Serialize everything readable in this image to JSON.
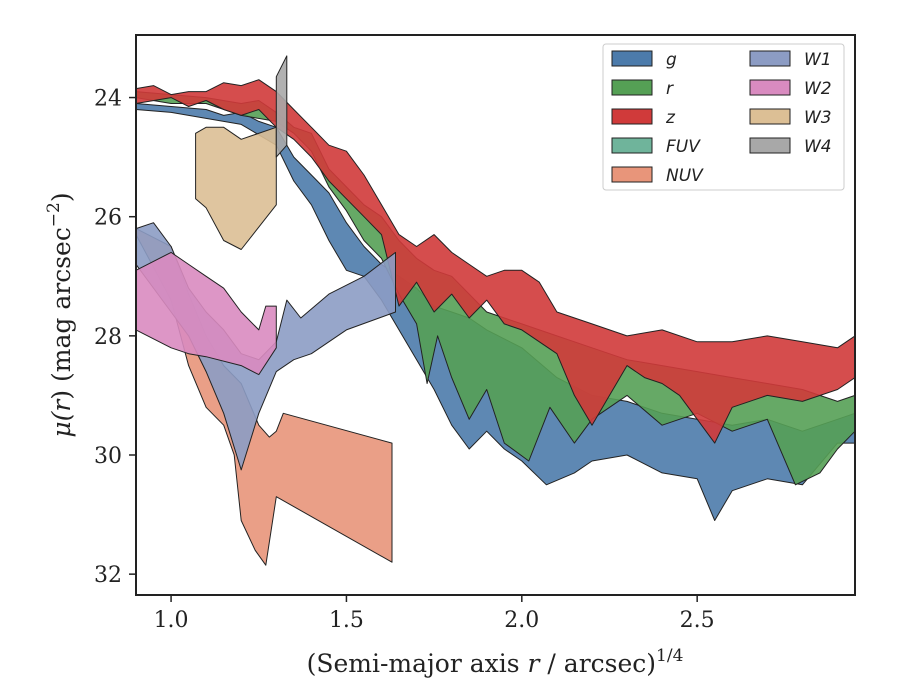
{
  "chart_data": {
    "type": "area",
    "xlabel_main": "(Semi-major axis ",
    "xlabel_var": "r",
    "xlabel_rest": " / arcsec)",
    "xlabel_sup": "1/4",
    "ylabel_main": "μ(",
    "ylabel_var": "r",
    "ylabel_rest": ") (mag arcsec",
    "ylabel_sup": "−2",
    "ylabel_close": ")",
    "xlim": [
      0.9,
      2.95
    ],
    "ylim": [
      32.35,
      22.95
    ],
    "y_inverted": true,
    "xticks": [
      1.0,
      1.5,
      2.0,
      2.5
    ],
    "xtick_labels": [
      "1.0",
      "1.5",
      "2.0",
      "2.5"
    ],
    "yticks": [
      24,
      26,
      28,
      30,
      32
    ],
    "ytick_labels": [
      "24",
      "26",
      "28",
      "30",
      "32"
    ],
    "grid": false,
    "legend": {
      "placement": "top-right",
      "columns": 2
    },
    "series": [
      {
        "name": "g",
        "color": "#4c7bab",
        "upper": [
          [
            0.9,
            24.1
          ],
          [
            1.0,
            24.15
          ],
          [
            1.1,
            24.2
          ],
          [
            1.15,
            24.3
          ],
          [
            1.2,
            24.25
          ],
          [
            1.25,
            24.4
          ],
          [
            1.3,
            24.5
          ],
          [
            1.35,
            25.0
          ],
          [
            1.4,
            25.3
          ],
          [
            1.45,
            25.6
          ],
          [
            1.5,
            26.1
          ],
          [
            1.55,
            26.5
          ],
          [
            1.6,
            26.8
          ],
          [
            1.65,
            27.0
          ],
          [
            1.7,
            27.2
          ],
          [
            1.75,
            27.5
          ],
          [
            1.8,
            27.6
          ],
          [
            1.85,
            27.7
          ],
          [
            1.9,
            27.9
          ],
          [
            2.0,
            28.2
          ],
          [
            2.1,
            28.7
          ],
          [
            2.2,
            29.0
          ],
          [
            2.3,
            29.1
          ],
          [
            2.4,
            29.3
          ],
          [
            2.5,
            29.4
          ],
          [
            2.6,
            29.5
          ],
          [
            2.7,
            29.4
          ],
          [
            2.8,
            29.6
          ],
          [
            2.9,
            29.4
          ],
          [
            2.95,
            29.3
          ]
        ],
        "lower": [
          [
            0.9,
            24.2
          ],
          [
            1.0,
            24.25
          ],
          [
            1.1,
            24.35
          ],
          [
            1.2,
            24.45
          ],
          [
            1.3,
            24.8
          ],
          [
            1.35,
            25.4
          ],
          [
            1.4,
            25.8
          ],
          [
            1.45,
            26.4
          ],
          [
            1.5,
            26.9
          ],
          [
            1.55,
            27.0
          ],
          [
            1.6,
            27.4
          ],
          [
            1.65,
            27.9
          ],
          [
            1.7,
            28.4
          ],
          [
            1.75,
            28.9
          ],
          [
            1.8,
            29.5
          ],
          [
            1.85,
            29.9
          ],
          [
            1.9,
            29.6
          ],
          [
            1.95,
            29.9
          ],
          [
            2.0,
            30.1
          ],
          [
            2.07,
            30.5
          ],
          [
            2.15,
            30.3
          ],
          [
            2.2,
            30.1
          ],
          [
            2.3,
            30.0
          ],
          [
            2.4,
            30.3
          ],
          [
            2.5,
            30.4
          ],
          [
            2.55,
            31.1
          ],
          [
            2.6,
            30.6
          ],
          [
            2.7,
            30.4
          ],
          [
            2.8,
            30.5
          ],
          [
            2.9,
            29.8
          ],
          [
            2.95,
            29.8
          ]
        ]
      },
      {
        "name": "r",
        "color": "#55a055",
        "upper": [
          [
            0.9,
            23.9
          ],
          [
            1.0,
            23.95
          ],
          [
            1.1,
            24.0
          ],
          [
            1.2,
            24.1
          ],
          [
            1.25,
            24.05
          ],
          [
            1.3,
            24.25
          ],
          [
            1.35,
            24.5
          ],
          [
            1.4,
            24.6
          ],
          [
            1.45,
            25.2
          ],
          [
            1.5,
            25.5
          ],
          [
            1.55,
            25.8
          ],
          [
            1.6,
            26.0
          ],
          [
            1.65,
            26.4
          ],
          [
            1.7,
            26.7
          ],
          [
            1.75,
            26.9
          ],
          [
            1.8,
            27.0
          ],
          [
            1.85,
            27.3
          ],
          [
            1.9,
            27.6
          ],
          [
            2.0,
            27.8
          ],
          [
            2.1,
            28.0
          ],
          [
            2.2,
            28.2
          ],
          [
            2.3,
            28.4
          ],
          [
            2.4,
            28.5
          ],
          [
            2.5,
            28.6
          ],
          [
            2.6,
            28.7
          ],
          [
            2.7,
            28.8
          ],
          [
            2.8,
            28.9
          ],
          [
            2.9,
            29.1
          ],
          [
            2.95,
            29.0
          ]
        ],
        "lower": [
          [
            0.9,
            24.0
          ],
          [
            1.0,
            24.1
          ],
          [
            1.1,
            24.1
          ],
          [
            1.2,
            24.3
          ],
          [
            1.3,
            24.4
          ],
          [
            1.35,
            24.6
          ],
          [
            1.4,
            24.9
          ],
          [
            1.45,
            25.5
          ],
          [
            1.5,
            25.9
          ],
          [
            1.55,
            26.4
          ],
          [
            1.6,
            26.7
          ],
          [
            1.65,
            27.3
          ],
          [
            1.7,
            27.8
          ],
          [
            1.73,
            28.8
          ],
          [
            1.76,
            28.0
          ],
          [
            1.8,
            28.7
          ],
          [
            1.85,
            29.4
          ],
          [
            1.9,
            28.9
          ],
          [
            1.95,
            29.8
          ],
          [
            2.02,
            30.1
          ],
          [
            2.08,
            29.2
          ],
          [
            2.15,
            29.8
          ],
          [
            2.2,
            29.4
          ],
          [
            2.3,
            29.0
          ],
          [
            2.4,
            29.5
          ],
          [
            2.5,
            29.3
          ],
          [
            2.6,
            29.6
          ],
          [
            2.7,
            29.4
          ],
          [
            2.78,
            30.5
          ],
          [
            2.85,
            30.3
          ],
          [
            2.9,
            29.9
          ],
          [
            2.95,
            29.6
          ]
        ]
      },
      {
        "name": "z",
        "color": "#d03a3a",
        "upper": [
          [
            0.9,
            23.85
          ],
          [
            0.95,
            23.8
          ],
          [
            1.0,
            23.95
          ],
          [
            1.05,
            23.9
          ],
          [
            1.1,
            23.9
          ],
          [
            1.15,
            23.75
          ],
          [
            1.2,
            23.8
          ],
          [
            1.25,
            23.7
          ],
          [
            1.3,
            23.9
          ],
          [
            1.35,
            24.2
          ],
          [
            1.4,
            24.5
          ],
          [
            1.45,
            24.8
          ],
          [
            1.5,
            24.9
          ],
          [
            1.55,
            25.3
          ],
          [
            1.6,
            25.8
          ],
          [
            1.65,
            26.3
          ],
          [
            1.7,
            26.5
          ],
          [
            1.75,
            26.3
          ],
          [
            1.8,
            26.6
          ],
          [
            1.85,
            26.8
          ],
          [
            1.9,
            27.0
          ],
          [
            1.95,
            26.9
          ],
          [
            2.0,
            26.9
          ],
          [
            2.05,
            27.1
          ],
          [
            2.1,
            27.6
          ],
          [
            2.2,
            27.8
          ],
          [
            2.3,
            28.0
          ],
          [
            2.4,
            27.9
          ],
          [
            2.5,
            28.1
          ],
          [
            2.6,
            28.1
          ],
          [
            2.7,
            28.0
          ],
          [
            2.8,
            28.1
          ],
          [
            2.9,
            28.2
          ],
          [
            2.95,
            28.0
          ]
        ],
        "lower": [
          [
            0.9,
            24.1
          ],
          [
            1.0,
            24.0
          ],
          [
            1.05,
            24.15
          ],
          [
            1.1,
            24.05
          ],
          [
            1.15,
            24.2
          ],
          [
            1.2,
            24.3
          ],
          [
            1.25,
            24.2
          ],
          [
            1.3,
            24.5
          ],
          [
            1.35,
            24.7
          ],
          [
            1.4,
            25.0
          ],
          [
            1.45,
            25.4
          ],
          [
            1.5,
            25.7
          ],
          [
            1.55,
            26.0
          ],
          [
            1.6,
            26.3
          ],
          [
            1.65,
            27.5
          ],
          [
            1.7,
            27.1
          ],
          [
            1.75,
            27.6
          ],
          [
            1.8,
            27.3
          ],
          [
            1.85,
            27.7
          ],
          [
            1.9,
            27.4
          ],
          [
            1.95,
            27.8
          ],
          [
            2.0,
            27.9
          ],
          [
            2.1,
            28.3
          ],
          [
            2.15,
            29.0
          ],
          [
            2.2,
            29.5
          ],
          [
            2.25,
            29.0
          ],
          [
            2.3,
            28.5
          ],
          [
            2.35,
            28.7
          ],
          [
            2.4,
            28.8
          ],
          [
            2.45,
            29.0
          ],
          [
            2.5,
            29.4
          ],
          [
            2.55,
            29.8
          ],
          [
            2.6,
            29.2
          ],
          [
            2.7,
            29.0
          ],
          [
            2.8,
            29.1
          ],
          [
            2.9,
            28.9
          ],
          [
            2.95,
            28.7
          ]
        ]
      },
      {
        "name": "FUV",
        "color": "#6fb49b",
        "upper": [],
        "lower": []
      },
      {
        "name": "NUV",
        "color": "#e8957a",
        "upper": [
          [
            0.9,
            26.2
          ],
          [
            1.0,
            26.5
          ],
          [
            1.05,
            27.3
          ],
          [
            1.1,
            28.0
          ],
          [
            1.15,
            28.5
          ],
          [
            1.2,
            28.8
          ],
          [
            1.25,
            29.5
          ],
          [
            1.28,
            29.7
          ],
          [
            1.3,
            29.6
          ],
          [
            1.32,
            29.3
          ],
          [
            1.63,
            29.8
          ]
        ],
        "lower": [
          [
            0.9,
            26.3
          ],
          [
            1.0,
            27.4
          ],
          [
            1.05,
            28.5
          ],
          [
            1.1,
            29.2
          ],
          [
            1.15,
            29.5
          ],
          [
            1.18,
            30.0
          ],
          [
            1.2,
            31.1
          ],
          [
            1.24,
            31.6
          ],
          [
            1.27,
            31.85
          ],
          [
            1.3,
            30.7
          ],
          [
            1.63,
            31.8
          ]
        ]
      },
      {
        "name": "W1",
        "color": "#8c9cc4",
        "upper": [
          [
            0.9,
            26.2
          ],
          [
            0.95,
            26.1
          ],
          [
            1.0,
            26.5
          ],
          [
            1.05,
            27.2
          ],
          [
            1.1,
            27.6
          ],
          [
            1.15,
            27.9
          ],
          [
            1.2,
            28.3
          ],
          [
            1.25,
            28.4
          ],
          [
            1.3,
            28.1
          ],
          [
            1.33,
            27.4
          ],
          [
            1.37,
            27.7
          ],
          [
            1.45,
            27.3
          ],
          [
            1.55,
            27.0
          ],
          [
            1.64,
            26.6
          ]
        ],
        "lower": [
          [
            0.9,
            26.8
          ],
          [
            1.0,
            27.6
          ],
          [
            1.05,
            28.0
          ],
          [
            1.1,
            28.6
          ],
          [
            1.15,
            29.3
          ],
          [
            1.2,
            30.25
          ],
          [
            1.25,
            29.3
          ],
          [
            1.3,
            28.6
          ],
          [
            1.35,
            28.4
          ],
          [
            1.4,
            28.3
          ],
          [
            1.5,
            27.9
          ],
          [
            1.64,
            27.6
          ]
        ]
      },
      {
        "name": "W2",
        "color": "#d98bc0",
        "upper": [
          [
            0.9,
            26.9
          ],
          [
            1.0,
            26.6
          ],
          [
            1.05,
            26.8
          ],
          [
            1.1,
            27.0
          ],
          [
            1.15,
            27.2
          ],
          [
            1.2,
            27.6
          ],
          [
            1.25,
            27.9
          ],
          [
            1.27,
            27.5
          ],
          [
            1.3,
            27.5
          ]
        ],
        "lower": [
          [
            0.9,
            27.9
          ],
          [
            1.0,
            28.2
          ],
          [
            1.05,
            28.3
          ],
          [
            1.1,
            28.35
          ],
          [
            1.2,
            28.5
          ],
          [
            1.25,
            28.65
          ],
          [
            1.3,
            28.2
          ]
        ]
      },
      {
        "name": "W3",
        "color": "#dcbf95",
        "upper": [
          [
            1.07,
            24.6
          ],
          [
            1.1,
            24.5
          ],
          [
            1.15,
            24.5
          ],
          [
            1.2,
            24.7
          ],
          [
            1.3,
            24.5
          ]
        ],
        "lower": [
          [
            1.07,
            25.7
          ],
          [
            1.1,
            25.85
          ],
          [
            1.15,
            26.4
          ],
          [
            1.2,
            26.55
          ],
          [
            1.3,
            25.8
          ]
        ]
      },
      {
        "name": "W4",
        "color": "#a8a8a8",
        "upper": [
          [
            1.3,
            23.65
          ],
          [
            1.33,
            23.3
          ]
        ],
        "lower": [
          [
            1.3,
            25.0
          ],
          [
            1.33,
            24.8
          ]
        ]
      }
    ]
  }
}
